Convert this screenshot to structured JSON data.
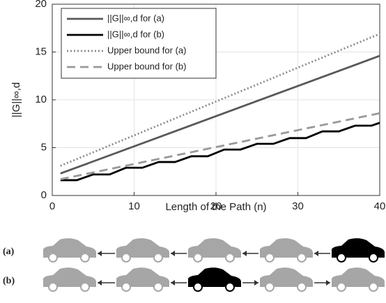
{
  "chart_data": {
    "type": "line",
    "x_label": "Length of the Path (n)",
    "y_label": "||G||∞,d",
    "xlim": [
      0,
      40
    ],
    "xticks": [
      0,
      10,
      20,
      30,
      40
    ],
    "ylim": [
      0,
      20
    ],
    "yticks": [
      0,
      5,
      10,
      15,
      20
    ],
    "grid": true,
    "legend": "upper left",
    "series": [
      {
        "name": "||G||∞,d for (a)",
        "color": "#595959",
        "style": "solid",
        "x": [
          1,
          40
        ],
        "values": [
          2.3,
          14.6
        ]
      },
      {
        "name": "||G||∞,d for (b)",
        "color": "#000000",
        "style": "solid",
        "x": [
          1,
          3,
          5,
          7,
          9,
          11,
          13,
          15,
          17,
          19,
          21,
          23,
          25,
          27,
          29,
          31,
          33,
          35,
          37,
          39,
          40
        ],
        "values": [
          1.6,
          1.6,
          2.2,
          2.2,
          2.9,
          2.9,
          3.5,
          3.5,
          4.1,
          4.1,
          4.8,
          4.8,
          5.4,
          5.4,
          6.0,
          6.0,
          6.7,
          6.7,
          7.3,
          7.3,
          7.6
        ]
      },
      {
        "name": "Upper bound for (a)",
        "color": "#8c8c8c",
        "style": "dotted",
        "x": [
          1,
          40
        ],
        "values": [
          3.1,
          16.9
        ]
      },
      {
        "name": "Upper bound for (b)",
        "color": "#999999",
        "style": "dashed",
        "x": [
          1,
          40
        ],
        "values": [
          1.7,
          8.6
        ]
      }
    ]
  },
  "diagram": {
    "rows": [
      {
        "label": "(a)"
      },
      {
        "label": "(b)"
      }
    ]
  }
}
